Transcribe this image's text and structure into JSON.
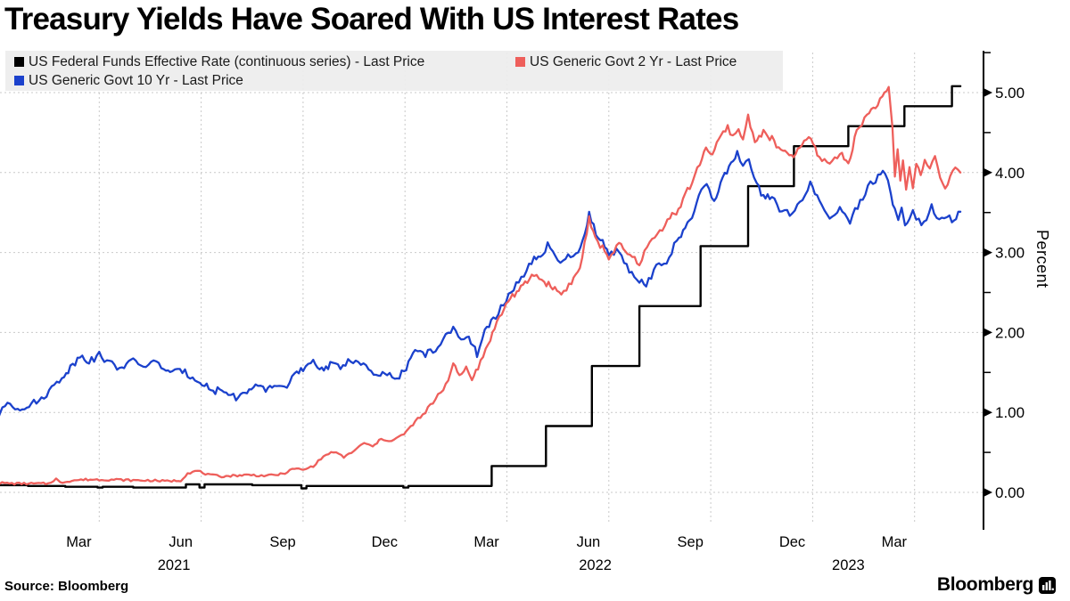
{
  "title": "Treasury Yields Have Soared With US Interest Rates",
  "source": "Source:  Bloomberg",
  "branding": {
    "logo_text": "Bloomberg",
    "logo_icon": "bloomberg-bars-icon"
  },
  "colors": {
    "fed_funds": "#000000",
    "govt_2yr": "#EE5F5B",
    "govt_10yr": "#1B41CC",
    "grid": "#C9C9C9",
    "axis": "#000000",
    "legend_bg": "#EDEDED"
  },
  "chart_data": {
    "type": "line",
    "title": "Treasury Yields Have Soared With US Interest Rates",
    "ylabel": "Percent",
    "ylim": [
      -0.45,
      5.5
    ],
    "grid": "dashed, horizontal at whole percents, vertical at quarter boundaries",
    "legend_position": "top-left, gray box, two rows",
    "x_unit": "months since 2021-01-01",
    "y_axis": {
      "label": "Percent",
      "major_ticks": [
        {
          "v": 0,
          "label": "0.00"
        },
        {
          "v": 1,
          "label": "1.00"
        },
        {
          "v": 2,
          "label": "2.00"
        },
        {
          "v": 3,
          "label": "3.00"
        },
        {
          "v": 4,
          "label": "4.00"
        },
        {
          "v": 5,
          "label": "5.00"
        }
      ],
      "minor_ticks": [
        0.5,
        1.5,
        2.5,
        3.5,
        4.5,
        5.5
      ],
      "gridlines": [
        0,
        1,
        2,
        3,
        4,
        5
      ]
    },
    "x_axis": {
      "quarter_gridlines_t": [
        3,
        6,
        9,
        12,
        15,
        18,
        21,
        24,
        27
      ],
      "month_ticks": [
        {
          "label": "Mar",
          "t": 2.4
        },
        {
          "label": "Jun",
          "t": 5.4
        },
        {
          "label": "Sep",
          "t": 8.4
        },
        {
          "label": "Dec",
          "t": 11.4
        },
        {
          "label": "Mar",
          "t": 14.4
        },
        {
          "label": "Jun",
          "t": 17.4
        },
        {
          "label": "Sep",
          "t": 20.4
        },
        {
          "label": "Dec",
          "t": 23.4
        },
        {
          "label": "Mar",
          "t": 26.4
        }
      ],
      "year_ticks": [
        {
          "label": "2021",
          "t": 5.2
        },
        {
          "label": "2022",
          "t": 17.6
        },
        {
          "label": "2023",
          "t": 25.05
        }
      ]
    },
    "series": [
      {
        "name": "US Federal Funds Effective Rate (continuous series) - Last Price",
        "color": "#000000",
        "style": "step",
        "stroke_width": 2.4,
        "points": [
          [
            0,
            0.09
          ],
          [
            0.9,
            0.08
          ],
          [
            2.0,
            0.07
          ],
          [
            2.95,
            0.06
          ],
          [
            3.1,
            0.07
          ],
          [
            4.0,
            0.06
          ],
          [
            5.55,
            0.1
          ],
          [
            5.95,
            0.06
          ],
          [
            6.1,
            0.1
          ],
          [
            7.5,
            0.09
          ],
          [
            8.95,
            0.05
          ],
          [
            9.1,
            0.08
          ],
          [
            11.95,
            0.06
          ],
          [
            12.1,
            0.08
          ],
          [
            14.55,
            0.33
          ],
          [
            16.15,
            0.83
          ],
          [
            17.5,
            1.58
          ],
          [
            18.9,
            2.33
          ],
          [
            20.7,
            3.08
          ],
          [
            22.1,
            3.83
          ],
          [
            23.45,
            4.33
          ],
          [
            25.05,
            4.58
          ],
          [
            26.7,
            4.83
          ],
          [
            28.1,
            5.08
          ],
          [
            28.35,
            5.08
          ]
        ]
      },
      {
        "name": "US Generic Govt 2 Yr - Last Price",
        "color": "#EE5F5B",
        "style": "line",
        "stroke_width": 2.3,
        "wiggle_lo": 0.013,
        "wiggle_hi": 0.038,
        "wiggle_threshold": 0.9,
        "seed": 7,
        "points": [
          [
            0,
            0.12
          ],
          [
            0.5,
            0.11
          ],
          [
            1.0,
            0.11
          ],
          [
            1.5,
            0.11
          ],
          [
            1.73,
            0.17
          ],
          [
            1.85,
            0.12
          ],
          [
            2.2,
            0.15
          ],
          [
            2.6,
            0.16
          ],
          [
            3.0,
            0.16
          ],
          [
            3.5,
            0.16
          ],
          [
            4.0,
            0.15
          ],
          [
            4.5,
            0.15
          ],
          [
            5.0,
            0.14
          ],
          [
            5.4,
            0.15
          ],
          [
            5.6,
            0.24
          ],
          [
            5.9,
            0.27
          ],
          [
            6.2,
            0.22
          ],
          [
            6.6,
            0.2
          ],
          [
            7.0,
            0.21
          ],
          [
            7.4,
            0.22
          ],
          [
            7.7,
            0.21
          ],
          [
            8.0,
            0.21
          ],
          [
            8.4,
            0.23
          ],
          [
            8.75,
            0.3
          ],
          [
            9.0,
            0.28
          ],
          [
            9.3,
            0.33
          ],
          [
            9.6,
            0.45
          ],
          [
            9.9,
            0.51
          ],
          [
            10.2,
            0.44
          ],
          [
            10.5,
            0.52
          ],
          [
            10.8,
            0.62
          ],
          [
            11.05,
            0.57
          ],
          [
            11.3,
            0.67
          ],
          [
            11.6,
            0.64
          ],
          [
            11.97,
            0.73
          ],
          [
            12.3,
            0.88
          ],
          [
            12.6,
            0.99
          ],
          [
            12.9,
            1.18
          ],
          [
            13.2,
            1.35
          ],
          [
            13.42,
            1.59
          ],
          [
            13.6,
            1.46
          ],
          [
            13.8,
            1.56
          ],
          [
            13.97,
            1.44
          ],
          [
            14.15,
            1.55
          ],
          [
            14.45,
            1.86
          ],
          [
            14.7,
            2.12
          ],
          [
            14.92,
            2.3
          ],
          [
            15.1,
            2.44
          ],
          [
            15.35,
            2.52
          ],
          [
            15.6,
            2.64
          ],
          [
            15.8,
            2.73
          ],
          [
            16.1,
            2.63
          ],
          [
            16.35,
            2.57
          ],
          [
            16.6,
            2.48
          ],
          [
            16.9,
            2.63
          ],
          [
            17.15,
            2.8
          ],
          [
            17.42,
            3.42
          ],
          [
            17.6,
            3.16
          ],
          [
            17.82,
            3.06
          ],
          [
            18.0,
            2.94
          ],
          [
            18.3,
            3.1
          ],
          [
            18.55,
            2.98
          ],
          [
            18.9,
            2.87
          ],
          [
            19.2,
            3.12
          ],
          [
            19.5,
            3.26
          ],
          [
            19.8,
            3.46
          ],
          [
            20.05,
            3.52
          ],
          [
            20.25,
            3.74
          ],
          [
            20.45,
            3.86
          ],
          [
            20.68,
            4.12
          ],
          [
            20.86,
            4.32
          ],
          [
            21.05,
            4.22
          ],
          [
            21.3,
            4.46
          ],
          [
            21.5,
            4.56
          ],
          [
            21.65,
            4.46
          ],
          [
            21.82,
            4.52
          ],
          [
            21.95,
            4.42
          ],
          [
            22.1,
            4.7
          ],
          [
            22.3,
            4.4
          ],
          [
            22.55,
            4.5
          ],
          [
            22.8,
            4.42
          ],
          [
            23.0,
            4.3
          ],
          [
            23.25,
            4.22
          ],
          [
            23.5,
            4.22
          ],
          [
            23.75,
            4.4
          ],
          [
            23.95,
            4.42
          ],
          [
            24.2,
            4.18
          ],
          [
            24.5,
            4.12
          ],
          [
            24.8,
            4.24
          ],
          [
            25.05,
            4.12
          ],
          [
            25.3,
            4.52
          ],
          [
            25.6,
            4.72
          ],
          [
            25.85,
            4.84
          ],
          [
            26.05,
            4.92
          ],
          [
            26.24,
            5.06
          ],
          [
            26.35,
            4.58
          ],
          [
            26.42,
            3.96
          ],
          [
            26.5,
            4.26
          ],
          [
            26.58,
            3.9
          ],
          [
            26.66,
            4.16
          ],
          [
            26.75,
            3.78
          ],
          [
            26.85,
            4.06
          ],
          [
            26.95,
            3.84
          ],
          [
            27.05,
            4.12
          ],
          [
            27.18,
            3.96
          ],
          [
            27.3,
            4.14
          ],
          [
            27.45,
            4.06
          ],
          [
            27.6,
            4.2
          ],
          [
            27.75,
            3.96
          ],
          [
            27.9,
            3.83
          ],
          [
            28.05,
            3.94
          ],
          [
            28.2,
            4.06
          ],
          [
            28.35,
            4.0
          ]
        ]
      },
      {
        "name": "US Generic Govt 10 Yr - Last Price",
        "color": "#1B41CC",
        "style": "line",
        "stroke_width": 2.3,
        "wiggle_lo": 0.042,
        "wiggle_hi": 0.042,
        "wiggle_threshold": 0,
        "seed": 13,
        "points": [
          [
            0,
            0.92
          ],
          [
            0.3,
            1.13
          ],
          [
            0.6,
            1.05
          ],
          [
            1.0,
            1.1
          ],
          [
            1.3,
            1.17
          ],
          [
            1.6,
            1.3
          ],
          [
            1.9,
            1.44
          ],
          [
            2.15,
            1.56
          ],
          [
            2.5,
            1.73
          ],
          [
            2.7,
            1.63
          ],
          [
            3.0,
            1.72
          ],
          [
            3.3,
            1.62
          ],
          [
            3.6,
            1.56
          ],
          [
            4.0,
            1.64
          ],
          [
            4.3,
            1.58
          ],
          [
            4.6,
            1.63
          ],
          [
            4.9,
            1.56
          ],
          [
            5.15,
            1.49
          ],
          [
            5.45,
            1.52
          ],
          [
            5.75,
            1.44
          ],
          [
            6.1,
            1.36
          ],
          [
            6.35,
            1.25
          ],
          [
            6.55,
            1.3
          ],
          [
            6.8,
            1.23
          ],
          [
            7.1,
            1.18
          ],
          [
            7.35,
            1.27
          ],
          [
            7.6,
            1.31
          ],
          [
            7.9,
            1.28
          ],
          [
            8.15,
            1.34
          ],
          [
            8.45,
            1.31
          ],
          [
            8.75,
            1.47
          ],
          [
            9.0,
            1.53
          ],
          [
            9.3,
            1.62
          ],
          [
            9.55,
            1.55
          ],
          [
            9.8,
            1.59
          ],
          [
            10.1,
            1.57
          ],
          [
            10.4,
            1.67
          ],
          [
            10.7,
            1.6
          ],
          [
            10.93,
            1.55
          ],
          [
            11.15,
            1.43
          ],
          [
            11.4,
            1.49
          ],
          [
            11.7,
            1.42
          ],
          [
            11.97,
            1.51
          ],
          [
            12.3,
            1.77
          ],
          [
            12.6,
            1.73
          ],
          [
            12.9,
            1.79
          ],
          [
            13.2,
            1.94
          ],
          [
            13.42,
            2.04
          ],
          [
            13.65,
            1.93
          ],
          [
            13.82,
            1.98
          ],
          [
            14.0,
            1.84
          ],
          [
            14.12,
            1.73
          ],
          [
            14.35,
            2.0
          ],
          [
            14.6,
            2.16
          ],
          [
            14.9,
            2.35
          ],
          [
            15.2,
            2.56
          ],
          [
            15.5,
            2.73
          ],
          [
            15.8,
            2.91
          ],
          [
            16.05,
            2.94
          ],
          [
            16.2,
            3.12
          ],
          [
            16.5,
            2.86
          ],
          [
            16.8,
            2.94
          ],
          [
            17.1,
            2.97
          ],
          [
            17.42,
            3.47
          ],
          [
            17.62,
            3.24
          ],
          [
            17.82,
            3.14
          ],
          [
            18.0,
            2.98
          ],
          [
            18.3,
            3.02
          ],
          [
            18.6,
            2.79
          ],
          [
            18.9,
            2.66
          ],
          [
            19.1,
            2.61
          ],
          [
            19.4,
            2.81
          ],
          [
            19.7,
            2.89
          ],
          [
            20.0,
            3.14
          ],
          [
            20.25,
            3.28
          ],
          [
            20.45,
            3.46
          ],
          [
            20.65,
            3.72
          ],
          [
            20.88,
            3.82
          ],
          [
            21.1,
            3.66
          ],
          [
            21.35,
            3.92
          ],
          [
            21.6,
            4.12
          ],
          [
            21.78,
            4.23
          ],
          [
            21.95,
            4.06
          ],
          [
            22.12,
            4.14
          ],
          [
            22.35,
            3.84
          ],
          [
            22.55,
            3.7
          ],
          [
            22.8,
            3.68
          ],
          [
            23.1,
            3.51
          ],
          [
            23.4,
            3.49
          ],
          [
            23.7,
            3.66
          ],
          [
            23.93,
            3.87
          ],
          [
            24.2,
            3.62
          ],
          [
            24.5,
            3.42
          ],
          [
            24.8,
            3.53
          ],
          [
            25.1,
            3.4
          ],
          [
            25.4,
            3.63
          ],
          [
            25.7,
            3.86
          ],
          [
            26.0,
            3.96
          ],
          [
            26.13,
            4.02
          ],
          [
            26.3,
            3.72
          ],
          [
            26.42,
            3.55
          ],
          [
            26.52,
            3.42
          ],
          [
            26.62,
            3.56
          ],
          [
            26.72,
            3.38
          ],
          [
            26.85,
            3.39
          ],
          [
            26.95,
            3.56
          ],
          [
            27.05,
            3.43
          ],
          [
            27.2,
            3.36
          ],
          [
            27.35,
            3.43
          ],
          [
            27.5,
            3.59
          ],
          [
            27.65,
            3.46
          ],
          [
            27.8,
            3.41
          ],
          [
            27.95,
            3.46
          ],
          [
            28.1,
            3.39
          ],
          [
            28.22,
            3.44
          ],
          [
            28.35,
            3.51
          ]
        ]
      }
    ]
  }
}
